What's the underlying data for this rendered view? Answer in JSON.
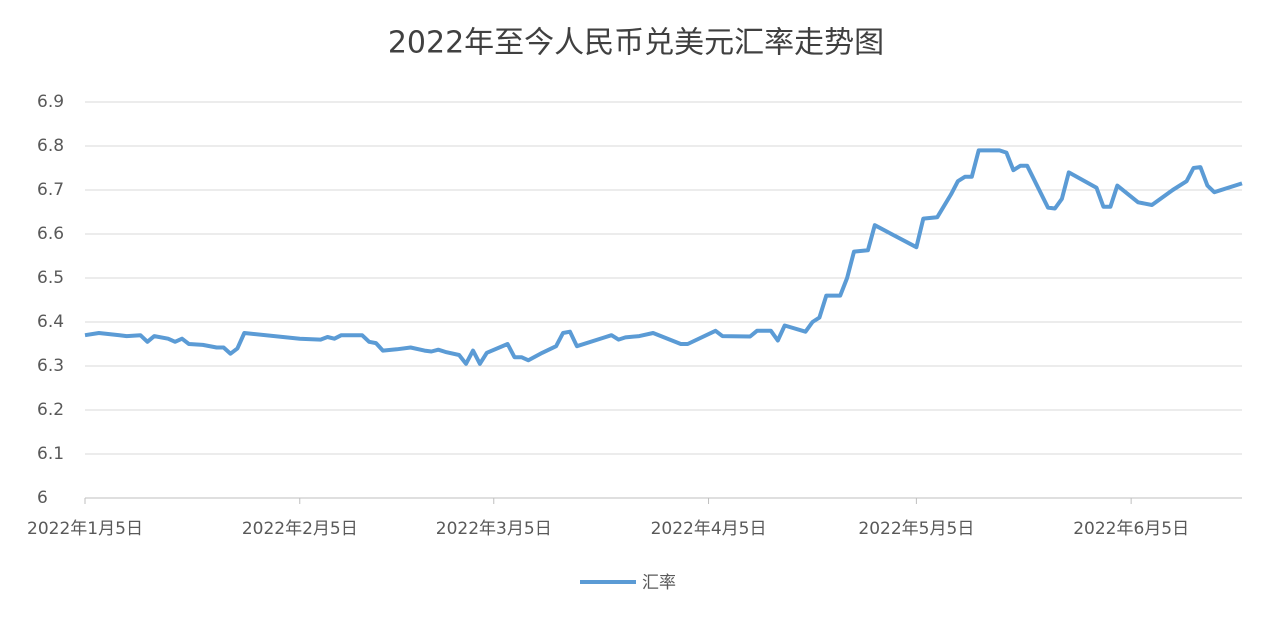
{
  "chart_data": {
    "type": "line",
    "title": "2022年至今人民币兑美元汇率走势图",
    "x": [
      "2022-01-05",
      "2022-01-07",
      "2022-01-10",
      "2022-01-11",
      "2022-01-13",
      "2022-01-14",
      "2022-01-15",
      "2022-01-17",
      "2022-01-18",
      "2022-01-19",
      "2022-01-20",
      "2022-01-22",
      "2022-01-24",
      "2022-01-25",
      "2022-01-26",
      "2022-01-27",
      "2022-01-28",
      "2022-02-05",
      "2022-02-08",
      "2022-02-09",
      "2022-02-10",
      "2022-02-11",
      "2022-02-14",
      "2022-02-15",
      "2022-02-16",
      "2022-02-17",
      "2022-02-19",
      "2022-02-21",
      "2022-02-23",
      "2022-02-24",
      "2022-02-25",
      "2022-02-26",
      "2022-02-28",
      "2022-03-01",
      "2022-03-02",
      "2022-03-03",
      "2022-03-04",
      "2022-03-07",
      "2022-03-08",
      "2022-03-09",
      "2022-03-10",
      "2022-03-12",
      "2022-03-14",
      "2022-03-15",
      "2022-03-16",
      "2022-03-17",
      "2022-03-21",
      "2022-03-22",
      "2022-03-23",
      "2022-03-24",
      "2022-03-26",
      "2022-03-28",
      "2022-04-01",
      "2022-04-02",
      "2022-04-06",
      "2022-04-07",
      "2022-04-11",
      "2022-04-12",
      "2022-04-14",
      "2022-04-15",
      "2022-04-16",
      "2022-04-19",
      "2022-04-20",
      "2022-04-21",
      "2022-04-22",
      "2022-04-24",
      "2022-04-25",
      "2022-04-26",
      "2022-04-28",
      "2022-04-29",
      "2022-05-05",
      "2022-05-06",
      "2022-05-08",
      "2022-05-10",
      "2022-05-11",
      "2022-05-12",
      "2022-05-13",
      "2022-05-14",
      "2022-05-17",
      "2022-05-18",
      "2022-05-19",
      "2022-05-20",
      "2022-05-21",
      "2022-05-24",
      "2022-05-25",
      "2022-05-26",
      "2022-05-27",
      "2022-05-31",
      "2022-06-01",
      "2022-06-02",
      "2022-06-03",
      "2022-06-06",
      "2022-06-08",
      "2022-06-11",
      "2022-06-13",
      "2022-06-14",
      "2022-06-15",
      "2022-06-16",
      "2022-06-17",
      "2022-06-21"
    ],
    "series": [
      {
        "name": "汇率",
        "color": "#5b9bd5",
        "values": [
          6.37,
          6.375,
          6.37,
          6.368,
          6.37,
          6.355,
          6.368,
          6.362,
          6.355,
          6.362,
          6.35,
          6.348,
          6.342,
          6.342,
          6.328,
          6.34,
          6.375,
          6.362,
          6.36,
          6.366,
          6.362,
          6.37,
          6.37,
          6.355,
          6.352,
          6.335,
          6.338,
          6.342,
          6.335,
          6.333,
          6.337,
          6.332,
          6.325,
          6.305,
          6.335,
          6.305,
          6.33,
          6.35,
          6.32,
          6.32,
          6.313,
          6.33,
          6.345,
          6.375,
          6.378,
          6.345,
          6.365,
          6.37,
          6.36,
          6.365,
          6.368,
          6.375,
          6.35,
          6.35,
          6.38,
          6.368,
          6.367,
          6.38,
          6.38,
          6.358,
          6.392,
          6.378,
          6.4,
          6.41,
          6.46,
          6.46,
          6.5,
          6.56,
          6.563,
          6.62,
          6.57,
          6.635,
          6.638,
          6.69,
          6.72,
          6.73,
          6.73,
          6.79,
          6.79,
          6.785,
          6.745,
          6.755,
          6.755,
          6.66,
          6.658,
          6.68,
          6.74,
          6.705,
          6.662,
          6.662,
          6.71,
          6.672,
          6.666,
          6.7,
          6.72,
          6.75,
          6.752,
          6.71,
          6.695,
          6.715
        ]
      }
    ],
    "xlim": [
      "2022-01-05",
      "2022-06-21"
    ],
    "xticks": [
      {
        "value": "2022-01-05",
        "label": "2022年1月5日"
      },
      {
        "value": "2022-02-05",
        "label": "2022年2月5日"
      },
      {
        "value": "2022-03-05",
        "label": "2022年3月5日"
      },
      {
        "value": "2022-04-05",
        "label": "2022年4月5日"
      },
      {
        "value": "2022-05-05",
        "label": "2022年5月5日"
      },
      {
        "value": "2022-06-05",
        "label": "2022年6月5日"
      }
    ],
    "ylim": [
      6,
      6.9
    ],
    "yticks": [
      6,
      6.1,
      6.2,
      6.3,
      6.4,
      6.5,
      6.6,
      6.7,
      6.8,
      6.9
    ],
    "grid": true
  }
}
